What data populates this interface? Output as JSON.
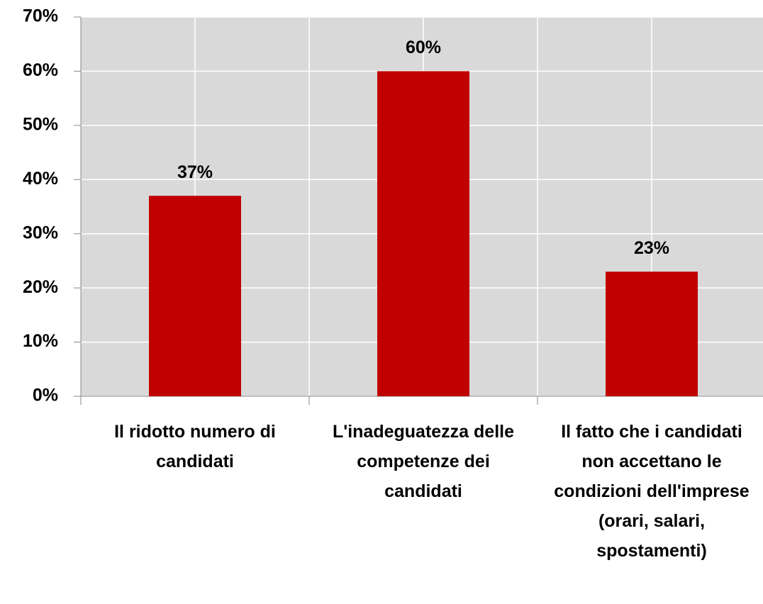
{
  "chart_data": {
    "type": "bar",
    "categories": [
      "Il ridotto numero di candidati",
      "L'inadeguatezza delle competenze dei candidati",
      "Il fatto che i candidati non accettano le condizioni dell'imprese (orari, salari, spostamenti)"
    ],
    "values": [
      37,
      60,
      23
    ],
    "value_labels": [
      "37%",
      "60%",
      "23%"
    ],
    "color": "#c00000",
    "ylim": [
      0,
      70
    ],
    "yticks": [
      {
        "value": 0,
        "label": "0%"
      },
      {
        "value": 10,
        "label": "10%"
      },
      {
        "value": 20,
        "label": "20%"
      },
      {
        "value": 30,
        "label": "30%"
      },
      {
        "value": 40,
        "label": "40%"
      },
      {
        "value": 50,
        "label": "50%"
      },
      {
        "value": 60,
        "label": "60%"
      },
      {
        "value": 70,
        "label": "70%"
      }
    ],
    "grid": true
  }
}
